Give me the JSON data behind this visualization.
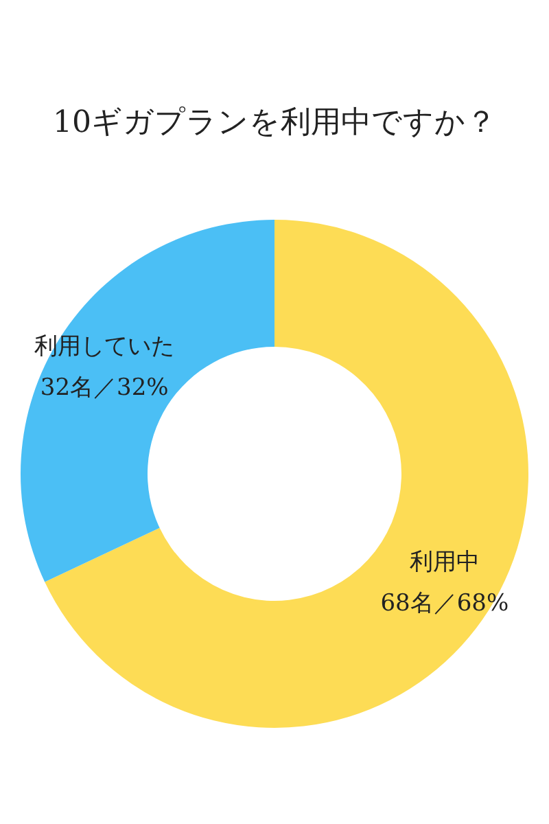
{
  "chart_data": {
    "type": "donut",
    "title": "10ギガプランを利用中ですか？",
    "categories": [
      "利用中",
      "利用していた"
    ],
    "values": [
      68,
      32
    ],
    "value_labels": [
      "68名／68%",
      "32名／32%"
    ],
    "colors": [
      "#fddc55",
      "#4bbff5"
    ]
  }
}
